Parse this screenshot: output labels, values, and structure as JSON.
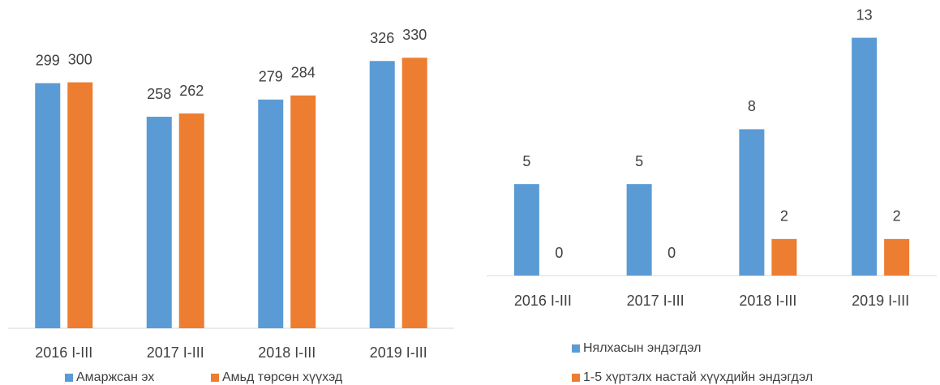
{
  "chart_data": [
    {
      "type": "bar",
      "categories": [
        "2016 I-III",
        "2017 I-III",
        "2018 I-III",
        "2019 I-III"
      ],
      "series": [
        {
          "name": "Амаржсан эх",
          "color": "#5b9bd5",
          "values": [
            299,
            258,
            279,
            326
          ]
        },
        {
          "name": "Амьд төрсөн хүүхэд",
          "color": "#ed7d31",
          "values": [
            300,
            262,
            284,
            330
          ]
        }
      ],
      "ylim": [
        0,
        350
      ]
    },
    {
      "type": "bar",
      "categories": [
        "2016 I-III",
        "2017 I-III",
        "2018 I-III",
        "2019 I-III"
      ],
      "series": [
        {
          "name": "Нялхасын эндэгдэл",
          "color": "#5b9bd5",
          "values": [
            5,
            5,
            8,
            13
          ]
        },
        {
          "name": "1-5 хүртэлх настай хүүхдийн эндэгдэл",
          "color": "#ed7d31",
          "values": [
            0,
            0,
            2,
            2
          ]
        }
      ],
      "ylim": [
        0,
        14
      ]
    }
  ]
}
